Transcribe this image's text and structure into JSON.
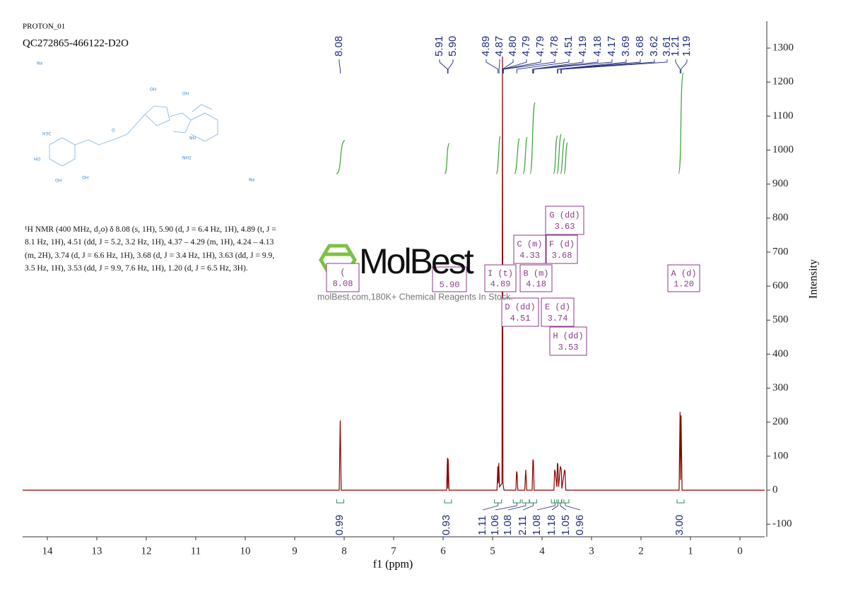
{
  "chart_data": {
    "type": "line",
    "title": "PROTON_01",
    "subtitle": "QC272865-466122-D2O",
    "x_label": "f1 (ppm)",
    "y_label": "Intensity",
    "color": "#8b0000",
    "xlim": [
      14.5,
      -0.5
    ],
    "xticks": [
      14,
      13,
      12,
      11,
      10,
      9,
      8,
      7,
      6,
      5,
      4,
      3,
      2,
      1,
      0
    ],
    "ylim": [
      -137,
      1379
    ],
    "yticks": [
      -100,
      0,
      100,
      200,
      300,
      400,
      500,
      600,
      700,
      800,
      900,
      1000,
      1100,
      1200,
      1300
    ],
    "x": [
      14.5,
      8.1,
      8.08,
      8.06,
      5.93,
      5.912,
      5.905,
      5.898,
      5.88,
      4.91,
      4.895,
      4.885,
      4.875,
      4.86,
      4.81,
      4.8,
      4.79,
      4.77,
      4.53,
      4.515,
      4.505,
      4.49,
      4.35,
      4.33,
      4.31,
      4.2,
      4.185,
      4.175,
      4.16,
      3.76,
      3.745,
      3.735,
      3.7,
      3.69,
      3.68,
      3.665,
      3.63,
      3.62,
      3.61,
      3.6,
      3.545,
      3.535,
      3.52,
      1.23,
      1.21,
      1.2,
      1.19,
      1.17,
      -0.5
    ],
    "values": [
      0,
      0,
      205,
      0,
      0,
      95,
      5,
      92,
      0,
      0,
      70,
      20,
      80,
      10,
      20,
      1275,
      20,
      0,
      0,
      55,
      50,
      0,
      0,
      60,
      0,
      0,
      90,
      85,
      0,
      0,
      60,
      55,
      10,
      80,
      75,
      10,
      70,
      65,
      60,
      5,
      60,
      55,
      0,
      0,
      230,
      30,
      220,
      0,
      0
    ],
    "peak_labels": [
      8.08,
      5.91,
      {
        "value": 5.9,
        "label": "5.90"
      },
      4.89,
      4.87,
      {
        "value": 4.8,
        "label": "4.80"
      },
      4.79,
      4.79,
      4.78,
      4.51,
      4.19,
      4.18,
      4.17,
      3.69,
      3.68,
      3.62,
      3.61,
      1.21,
      1.19
    ],
    "integrals": {
      "color": "#2e8b57",
      "x": [
        8.08,
        5.9,
        4.89,
        4.51,
        4.33,
        4.18,
        3.74,
        3.68,
        3.63,
        3.53,
        1.2
      ],
      "values": [
        0.99,
        0.93,
        1.11,
        1.06,
        1.08,
        2.11,
        1.08,
        1.18,
        1.05,
        0.96,
        3
      ],
      "value_labels": [
        "0.99",
        "0.93",
        "1.11",
        "1.06",
        "1.08",
        "2.11",
        "1.08",
        "1.18",
        "1.05",
        "0.96",
        "3.00"
      ]
    },
    "multiplets": [
      {
        "name": "(",
        "shift": 8.08
      },
      {
        "shift": {
          "value": 5.9,
          "label": "5.90"
        }
      },
      {
        "name": "I (t)",
        "shift": 4.89
      },
      {
        "name": "B (m)",
        "shift": 4.18
      },
      {
        "name": "C (m)",
        "shift": 4.33
      },
      {
        "name": "F (d)",
        "shift": 3.68
      },
      {
        "name": "G (dd)",
        "shift": 3.63
      },
      {
        "name": "D (dd)",
        "shift": 4.51
      },
      {
        "name": "E (d)",
        "shift": 3.74
      },
      {
        "name": "H (dd)",
        "shift": 3.53
      },
      {
        "name": "A (d)",
        "shift": {
          "value": 1.2,
          "label": "1.20"
        }
      }
    ],
    "description": "¹H NMR (400 MHz, d₂o) δ 8.08 (s, 1H), 5.90 (d, J = 6.4 Hz, 1H), 4.89 (t, J = 8.1 Hz, 1H), 4.51 (dd, J = 5.2, 3.2 Hz, 1H), 4.37 – 4.29 (m, 1H), 4.24 – 4.13 (m, 2H), 3.74 (d, J = 6.6 Hz, 1H), 3.68 (d, J = 3.4 Hz, 1H), 3.63 (dd, J = 9.9, 3.5 Hz, 1H), 3.53 (dd, J = 9.9, 7.6 Hz, 1H), 1.20 (d, J = 6.5 Hz, 3H).",
    "structure_labels": [
      "Na",
      "OH",
      "OH",
      "O",
      "NH",
      "NH2",
      "H3C",
      "HO",
      "OH",
      "OH",
      "Na"
    ],
    "watermark": {
      "logo": "MolBest",
      "text": "molBest.com,180K+ Chemical Reagents In Stock."
    }
  }
}
